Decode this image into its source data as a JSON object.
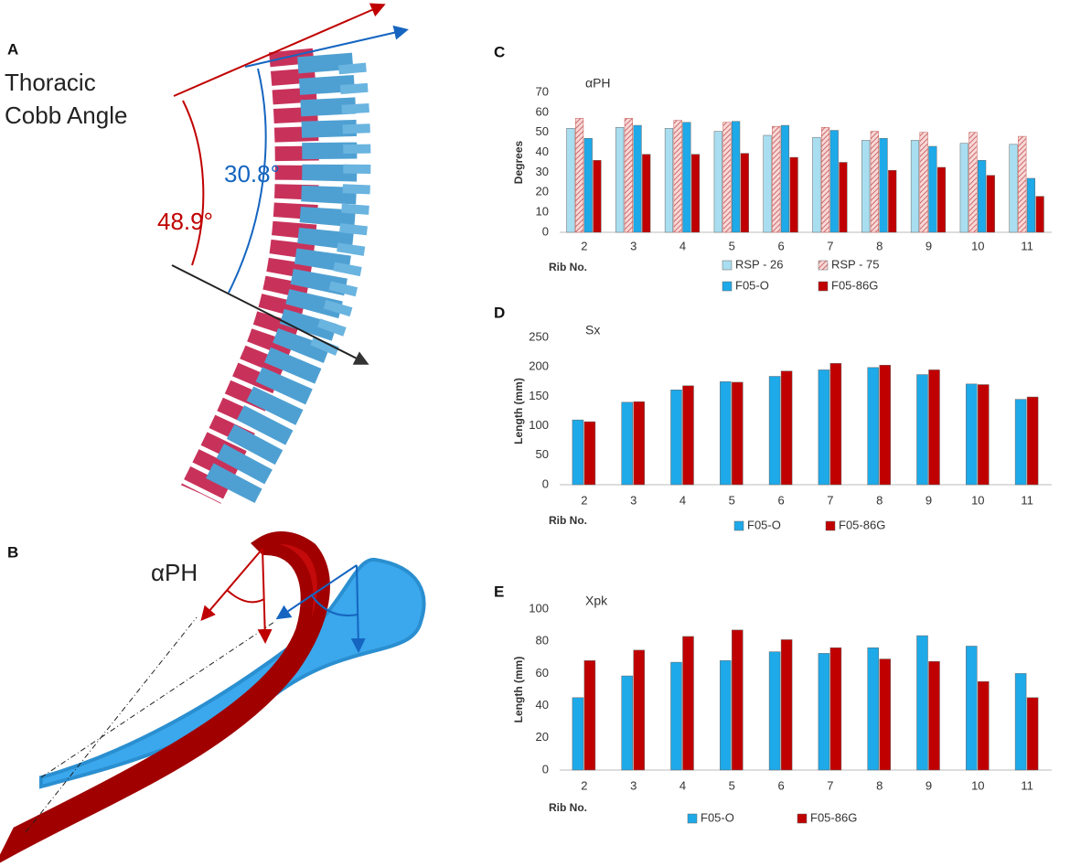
{
  "panel_a": {
    "label": "A",
    "title_lines": [
      "Thoracic",
      "Cobb Angle"
    ],
    "angles": [
      "48.9°",
      "30.8°"
    ]
  },
  "panel_b": {
    "label": "B",
    "annotation": "αPH"
  },
  "chart_data": [
    {
      "type": "bar",
      "panel_label": "C",
      "title": "αPH",
      "y_label": "Degrees",
      "x_label": "Rib No.",
      "categories": [
        "2",
        "3",
        "4",
        "5",
        "6",
        "7",
        "8",
        "9",
        "10",
        "11"
      ],
      "ylim": [
        0,
        70
      ],
      "yticks": [
        0,
        10,
        20,
        30,
        40,
        50,
        60,
        70
      ],
      "grid": false,
      "series": [
        {
          "name": "RSP - 26",
          "color": "#a9def0",
          "values": [
            52,
            52.5,
            52,
            50.5,
            48.5,
            47.5,
            46,
            46,
            44.5,
            44
          ]
        },
        {
          "name": "RSP - 75",
          "color": "#c0504d",
          "pattern": "hatch",
          "values": [
            57,
            57,
            56,
            55,
            53,
            52.5,
            50.5,
            50,
            50,
            48
          ]
        },
        {
          "name": "F05-O",
          "color": "#1ea9e8",
          "values": [
            47,
            53.5,
            55,
            55.5,
            53.5,
            51,
            47,
            43,
            36,
            27
          ]
        },
        {
          "name": "F05-86G",
          "color": "#c00000",
          "values": [
            36,
            39,
            39,
            39.5,
            37.5,
            35,
            31,
            32.5,
            28.5,
            18
          ]
        }
      ]
    },
    {
      "type": "bar",
      "panel_label": "D",
      "title": "Sx",
      "y_label": "Length (mm)",
      "x_label": "Rib No.",
      "categories": [
        "2",
        "3",
        "4",
        "5",
        "6",
        "7",
        "8",
        "9",
        "10",
        "11"
      ],
      "ylim": [
        0,
        250
      ],
      "yticks": [
        0,
        50,
        100,
        150,
        200,
        250
      ],
      "grid": false,
      "series": [
        {
          "name": "F05-O",
          "color": "#1ea9e8",
          "values": [
            110,
            140,
            161,
            175,
            184,
            195,
            199,
            187,
            171,
            145
          ]
        },
        {
          "name": "F05-86G",
          "color": "#c00000",
          "values": [
            107,
            141,
            168,
            174,
            193,
            206,
            203,
            195,
            170,
            149
          ]
        }
      ]
    },
    {
      "type": "bar",
      "panel_label": "E",
      "title": "Xpk",
      "y_label": "Length (mm)",
      "x_label": "Rib No.",
      "categories": [
        "2",
        "3",
        "4",
        "5",
        "6",
        "7",
        "8",
        "9",
        "10",
        "11"
      ],
      "ylim": [
        0,
        100
      ],
      "yticks": [
        0,
        20,
        40,
        60,
        80,
        100
      ],
      "grid": false,
      "series": [
        {
          "name": "F05-O",
          "color": "#1ea9e8",
          "values": [
            45,
            58.5,
            67,
            68,
            73.5,
            72.5,
            76,
            83.5,
            77,
            60
          ]
        },
        {
          "name": "F05-86G",
          "color": "#c00000",
          "values": [
            68,
            74.5,
            83,
            87,
            81,
            76,
            69,
            67.5,
            55,
            45
          ]
        }
      ]
    }
  ]
}
